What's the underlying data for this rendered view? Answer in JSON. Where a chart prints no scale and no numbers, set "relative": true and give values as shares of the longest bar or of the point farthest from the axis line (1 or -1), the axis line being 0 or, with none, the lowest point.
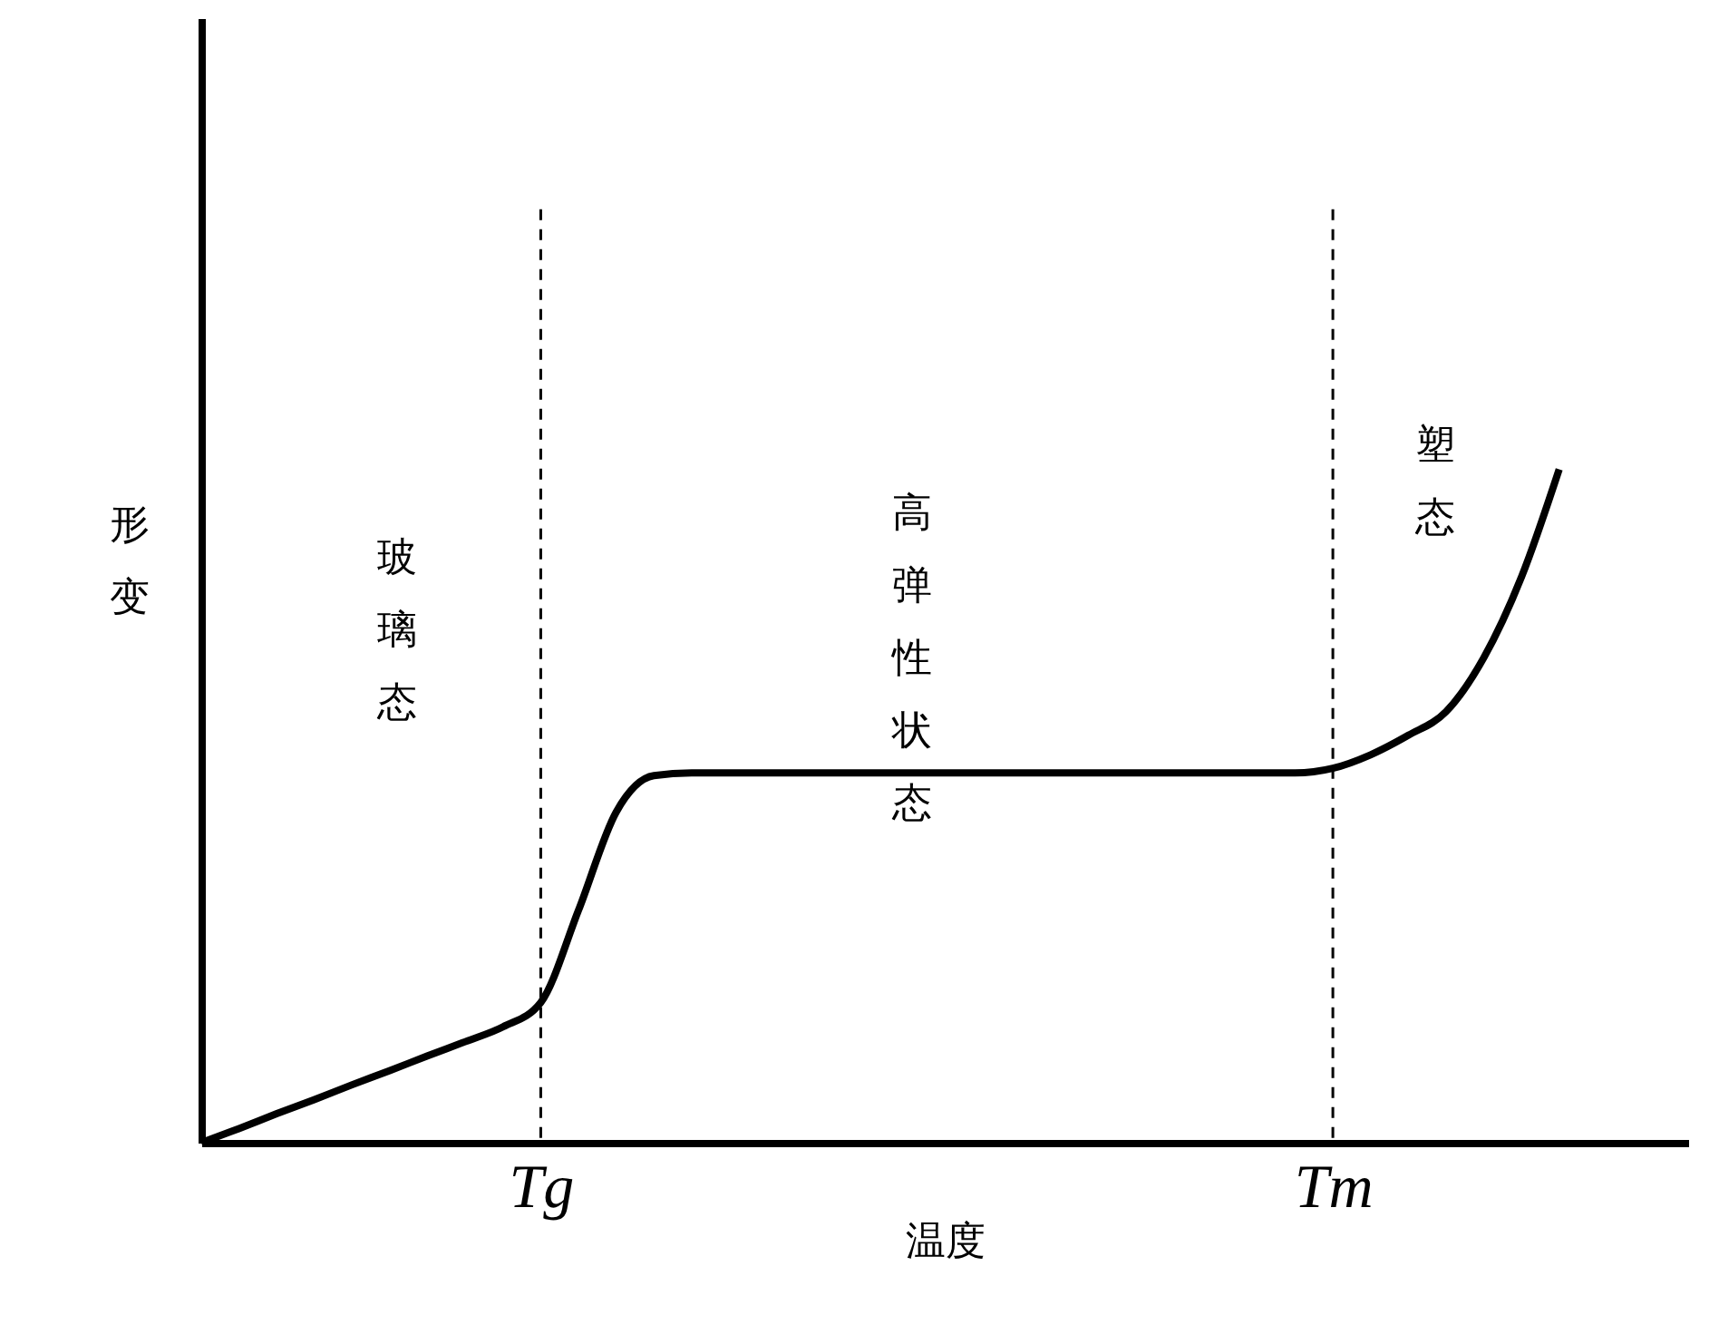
{
  "chart_data": {
    "type": "line",
    "relative": true,
    "xlabel": "温度",
    "ylabel": "形变",
    "tick_labels": "x",
    "line_style": "solid",
    "categories": [
      null,
      null,
      null,
      null,
      null,
      null,
      null,
      null,
      null,
      "Tg",
      null,
      null,
      null,
      null,
      null,
      null,
      null,
      null,
      null,
      null,
      null,
      null,
      null,
      null,
      null,
      null,
      null,
      null,
      null,
      null,
      "Tm",
      null,
      null,
      null,
      null,
      null,
      null
    ],
    "series": [
      {
        "color": "#000000",
        "values": [
          0,
          0.021,
          0.043,
          0.064,
          0.086,
          0.107,
          0.129,
          0.15,
          0.172,
          0.208,
          0.345,
          0.491,
          0.545,
          0.549,
          0.549,
          0.549,
          0.549,
          0.549,
          0.549,
          0.549,
          0.549,
          0.549,
          0.549,
          0.549,
          0.549,
          0.549,
          0.549,
          0.549,
          0.549,
          0.549,
          0.556,
          0.576,
          0.605,
          0.64,
          0.72,
          0.84,
          1
        ]
      }
    ],
    "ref_lines": [
      {
        "axis": "x",
        "value": "Tg",
        "color": "#000000",
        "line_style": "dashed"
      },
      {
        "axis": "x",
        "value": "Tm",
        "color": "#000000",
        "line_style": "dashed"
      }
    ],
    "annotations": [
      "玻璃态",
      "高弹性状态",
      "塑态"
    ]
  }
}
